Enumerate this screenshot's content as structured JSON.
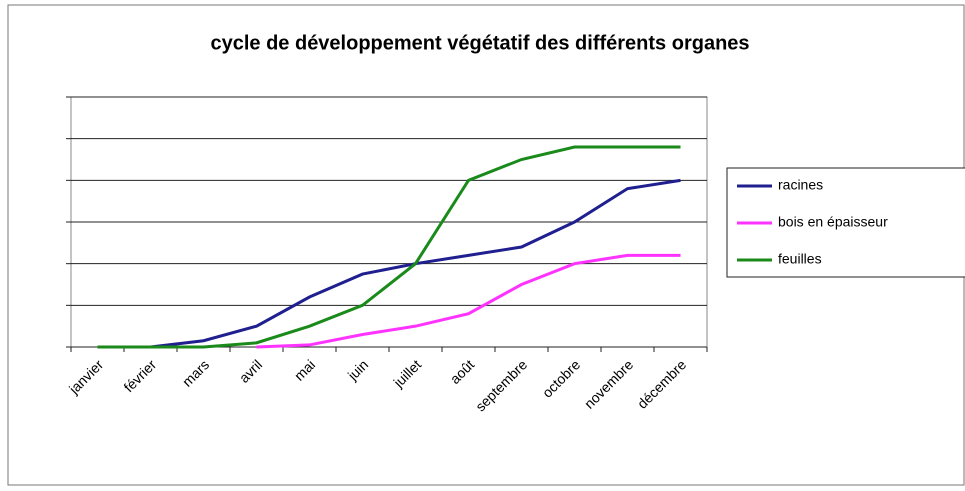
{
  "chart_data": {
    "type": "line",
    "title": "cycle de développement végétatif des différents organes",
    "categories": [
      "janvier",
      "février",
      "mars",
      "avril",
      "mai",
      "juin",
      "juillet",
      "août",
      "septembre",
      "octobre",
      "novembre",
      "décembre"
    ],
    "series": [
      {
        "name": "racines",
        "color": "#1f1f8f",
        "values": [
          0,
          0,
          0.15,
          0.5,
          1.2,
          1.75,
          2,
          2.2,
          2.4,
          3,
          3.8,
          4
        ]
      },
      {
        "name": "bois en épaisseur",
        "color": "#ff33ff",
        "values": [
          null,
          null,
          null,
          0,
          0.05,
          0.3,
          0.5,
          0.8,
          1.5,
          2,
          2.2,
          2.2
        ]
      },
      {
        "name": "feuilles",
        "color": "#1a8a1a",
        "values": [
          0,
          0,
          0,
          0.1,
          0.5,
          1,
          2,
          4,
          4.5,
          4.8,
          4.8,
          4.8
        ]
      }
    ],
    "ylim": [
      0,
      6
    ],
    "yticks": [
      0,
      1,
      2,
      3,
      4,
      5,
      6
    ],
    "grid": true,
    "legend": "right"
  }
}
